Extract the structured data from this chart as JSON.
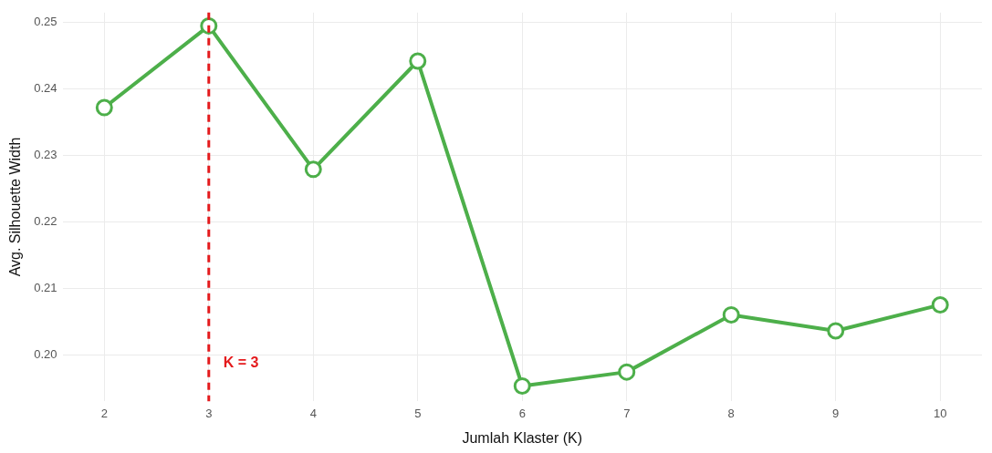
{
  "chart_data": {
    "type": "line",
    "xlabel": "Jumlah Klaster (K)",
    "ylabel": "Avg. Silhouette Width",
    "x": [
      2,
      3,
      4,
      5,
      6,
      7,
      8,
      9,
      10
    ],
    "series": [
      {
        "color": "#4daf4a",
        "values": [
          0.2372,
          0.2495,
          0.2279,
          0.2442,
          0.1953,
          0.1974,
          0.206,
          0.2036,
          0.2075
        ]
      }
    ],
    "xlim": [
      1.6,
      10.4
    ],
    "xticks": [
      2,
      3,
      4,
      5,
      6,
      7,
      8,
      9,
      10
    ],
    "ylim": [
      0.193,
      0.2515
    ],
    "yticks": [
      {
        "value": 0.2,
        "label": "0.20"
      },
      0.21,
      0.22,
      0.23,
      0.24,
      0.25
    ],
    "ref_lines": [
      {
        "axis": "x",
        "value": 3,
        "color": "#e41a1c",
        "line_style": "dashed"
      }
    ],
    "annotations": [
      "K = 3"
    ],
    "grid": true,
    "legend": false,
    "marker": "circle",
    "line_style": "solid"
  }
}
